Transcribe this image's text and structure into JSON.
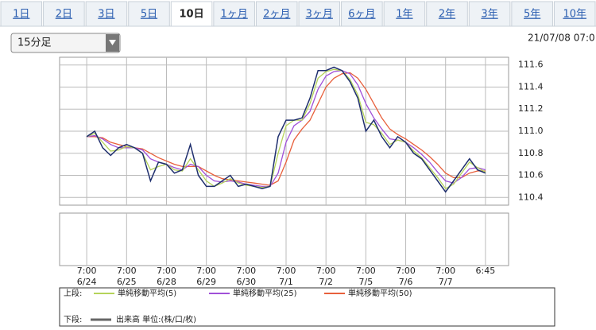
{
  "tabs": [
    "1日",
    "2日",
    "3日",
    "5日",
    "10日",
    "1ヶ月",
    "2ヶ月",
    "3ヶ月",
    "6ヶ月",
    "1年",
    "2年",
    "3年",
    "5年",
    "10年"
  ],
  "selected_tab": 4,
  "interval": "15分足",
  "timestamp": "21/07/08 07:0",
  "chart_data": {
    "type": "line",
    "x": [
      0,
      0.2,
      0.4,
      0.6,
      0.8,
      1,
      1.2,
      1.4,
      1.6,
      1.8,
      2,
      2.2,
      2.4,
      2.6,
      2.8,
      3,
      3.2,
      3.4,
      3.6,
      3.8,
      4,
      4.2,
      4.4,
      4.6,
      4.8,
      5,
      5.2,
      5.4,
      5.6,
      5.8,
      6,
      6.2,
      6.4,
      6.6,
      6.8,
      7,
      7.2,
      7.4,
      7.6,
      7.8,
      8,
      8.2,
      8.4,
      8.6,
      8.8,
      9,
      9.2,
      9.4,
      9.6,
      9.8,
      10
    ],
    "values": [
      110.95,
      111.0,
      110.85,
      110.78,
      110.85,
      110.88,
      110.85,
      110.8,
      110.55,
      110.72,
      110.7,
      110.62,
      110.65,
      110.88,
      110.6,
      110.5,
      110.5,
      110.55,
      110.6,
      110.5,
      110.52,
      110.5,
      110.48,
      110.5,
      110.95,
      111.1,
      111.1,
      111.12,
      111.3,
      111.55,
      111.55,
      111.58,
      111.55,
      111.45,
      111.3,
      111.0,
      111.1,
      110.95,
      110.85,
      110.95,
      110.9,
      110.8,
      110.75,
      110.65,
      110.55,
      110.45,
      110.55,
      110.65,
      110.75,
      110.65,
      110.62
    ],
    "color": "#1f2f6e",
    "upper_label": "上段:",
    "series": [
      {
        "name": "単純移動平均(5)",
        "color": "#b5d35a",
        "values": [
          110.95,
          110.98,
          110.9,
          110.82,
          110.83,
          110.86,
          110.85,
          110.8,
          110.65,
          110.68,
          110.7,
          110.65,
          110.64,
          110.75,
          110.65,
          110.55,
          110.5,
          110.53,
          110.57,
          110.53,
          110.51,
          110.5,
          110.49,
          110.5,
          110.8,
          111.05,
          111.1,
          111.1,
          111.25,
          111.48,
          111.54,
          111.56,
          111.55,
          111.47,
          111.33,
          111.08,
          111.06,
          110.98,
          110.88,
          110.92,
          110.9,
          110.82,
          110.76,
          110.67,
          110.58,
          110.48,
          110.52,
          110.62,
          110.72,
          110.67,
          110.63
        ]
      },
      {
        "name": "単純移動平均(25)",
        "color": "#a050d8",
        "values": [
          110.95,
          110.96,
          110.93,
          110.88,
          110.85,
          110.85,
          110.85,
          110.83,
          110.75,
          110.72,
          110.7,
          110.67,
          110.65,
          110.7,
          110.68,
          110.6,
          110.55,
          110.54,
          110.55,
          110.54,
          110.52,
          110.51,
          110.5,
          110.5,
          110.62,
          110.9,
          111.05,
          111.1,
          111.18,
          111.38,
          111.5,
          111.54,
          111.55,
          111.52,
          111.42,
          111.25,
          111.12,
          111.02,
          110.93,
          110.92,
          110.9,
          110.85,
          110.79,
          110.72,
          110.63,
          110.55,
          110.53,
          110.58,
          110.66,
          110.67,
          110.65
        ]
      },
      {
        "name": "単純移動平均(50)",
        "color": "#e8603c",
        "values": [
          110.95,
          110.95,
          110.94,
          110.9,
          110.88,
          110.86,
          110.85,
          110.84,
          110.8,
          110.76,
          110.73,
          110.7,
          110.68,
          110.68,
          110.68,
          110.64,
          110.6,
          110.57,
          110.56,
          110.55,
          110.54,
          110.53,
          110.52,
          110.51,
          110.55,
          110.72,
          110.92,
          111.02,
          111.1,
          111.25,
          111.4,
          111.48,
          111.52,
          111.53,
          111.48,
          111.38,
          111.25,
          111.12,
          111.02,
          110.97,
          110.93,
          110.88,
          110.83,
          110.77,
          110.7,
          110.62,
          110.58,
          110.58,
          110.62,
          110.64,
          110.64
        ]
      }
    ],
    "lower_legend": {
      "label": "下段:",
      "name": "出来高 単位:(株/口/枚)",
      "color": "#666666"
    },
    "xlim": [
      -0.68,
      10.58
    ],
    "xticks": [
      {
        "value": 0,
        "label": "7:00",
        "date": "6/24"
      },
      {
        "value": 1,
        "label": "7:00",
        "date": "6/25"
      },
      {
        "value": 2,
        "label": "7:00",
        "date": "6/28"
      },
      {
        "value": 3,
        "label": "7:00",
        "date": "6/29"
      },
      {
        "value": 4,
        "label": "7:00",
        "date": "6/30"
      },
      {
        "value": 5,
        "label": "7:00",
        "date": "7/1"
      },
      {
        "value": 6,
        "label": "7:00",
        "date": "7/2"
      },
      {
        "value": 7,
        "label": "7:00",
        "date": "7/5"
      },
      {
        "value": 8,
        "label": "7:00",
        "date": "7/6"
      },
      {
        "value": 9,
        "label": "7:00",
        "date": "7/7"
      },
      {
        "value": 10,
        "label": "6:45"
      }
    ],
    "ylim": [
      110.33,
      111.67
    ],
    "yticks": [
      110.4,
      110.6,
      110.8,
      {
        "value": 111,
        "label": "111.0"
      },
      111.2,
      111.4,
      111.6
    ],
    "grid": true
  }
}
